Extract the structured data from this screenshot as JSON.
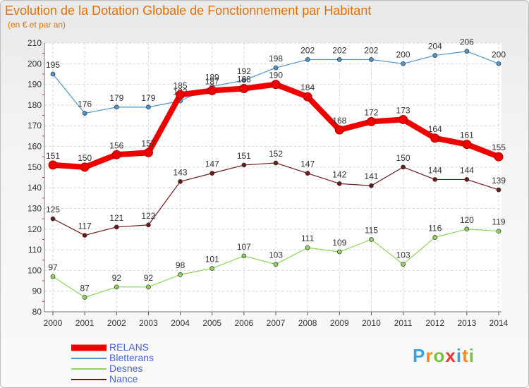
{
  "header": {
    "title": "Evolution de la Dotation Globale de Fonctionnement par Habitant",
    "subtitle": "(en € et par an)"
  },
  "logo": {
    "text": "Proxiti",
    "colors": [
      "#3aa0e0",
      "#f28c1e",
      "#7ac142",
      "#e8352e",
      "#3aa0e0",
      "#f28c1e",
      "#7ac142"
    ]
  },
  "chart_data": {
    "type": "line",
    "title": "Evolution de la Dotation Globale de Fonctionnement par Habitant",
    "subtitle": "(en € et par an)",
    "xlabel": "",
    "ylabel": "",
    "x": [
      "2000",
      "2001",
      "2002",
      "2003",
      "2004",
      "2005",
      "2006",
      "2007",
      "2008",
      "2009",
      "2010",
      "2011",
      "2012",
      "2013",
      "2014"
    ],
    "ylim": [
      80,
      210
    ],
    "yticks": [
      80,
      90,
      100,
      110,
      120,
      130,
      140,
      150,
      160,
      170,
      180,
      190,
      200,
      210
    ],
    "grid": true,
    "legend_position": "bottom-left",
    "series": [
      {
        "name": "RELANS",
        "color": "#ee0000",
        "bold": true,
        "values": [
          151,
          150,
          156,
          157,
          185,
          187,
          188,
          190,
          184,
          168,
          172,
          173,
          164,
          161,
          155
        ]
      },
      {
        "name": "Bletterans",
        "color": "#4f94cd",
        "values": [
          195,
          176,
          179,
          179,
          182,
          189,
          192,
          198,
          202,
          202,
          202,
          200,
          204,
          206,
          200
        ]
      },
      {
        "name": "Desnes",
        "color": "#8fd45a",
        "values": [
          97,
          87,
          92,
          92,
          98,
          101,
          107,
          103,
          111,
          109,
          115,
          103,
          116,
          120,
          119
        ]
      },
      {
        "name": "Nance",
        "color": "#6b1a1a",
        "values": [
          125,
          117,
          121,
          122,
          143,
          147,
          151,
          152,
          147,
          142,
          141,
          150,
          144,
          144,
          139
        ]
      }
    ]
  }
}
